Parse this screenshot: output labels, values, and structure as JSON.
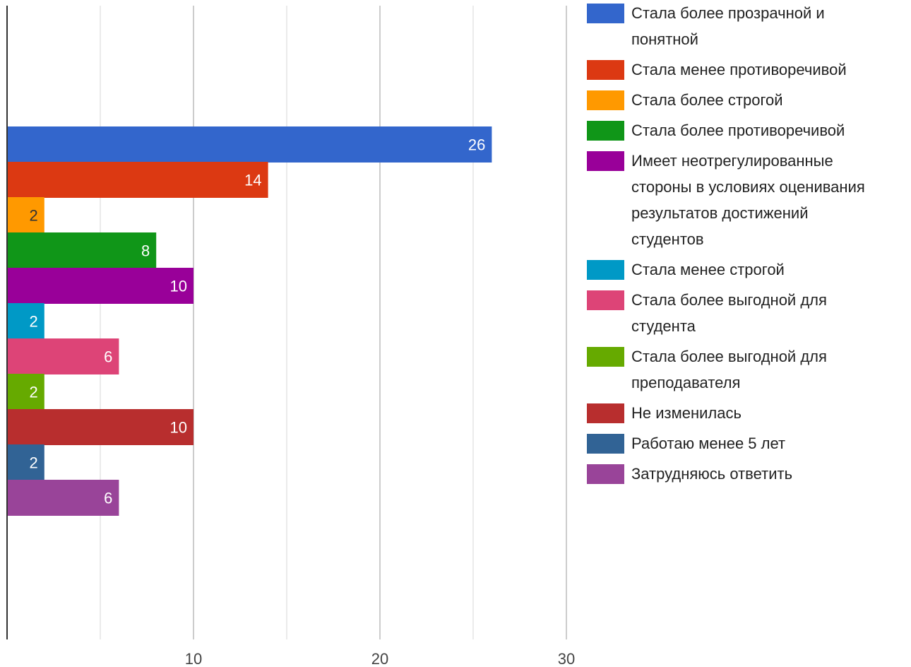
{
  "chart_data": {
    "type": "bar",
    "orientation": "horizontal",
    "xlim": [
      0,
      30
    ],
    "x_ticks": [
      10,
      20,
      30
    ],
    "grid": true,
    "legend_position": "right",
    "series": [
      {
        "name": "Стала более прозрачной и понятной",
        "value": 26,
        "color": "#3366cc",
        "label_color": "#ffffff"
      },
      {
        "name": "Стала менее противоречивой",
        "value": 14,
        "color": "#dc3912",
        "label_color": "#ffffff"
      },
      {
        "name": "Стала более строгой",
        "value": 2,
        "color": "#ff9900",
        "label_color": "#333333"
      },
      {
        "name": "Стала более противоречивой",
        "value": 8,
        "color": "#109618",
        "label_color": "#ffffff"
      },
      {
        "name": "Имеет неотрегулированные стороны в условиях оценивания результатов достижений студентов",
        "value": 10,
        "color": "#990099",
        "label_color": "#ffffff"
      },
      {
        "name": "Стала менее строгой",
        "value": 2,
        "color": "#0099c6",
        "label_color": "#ffffff"
      },
      {
        "name": "Стала более выгодной для студента",
        "value": 6,
        "color": "#dd4477",
        "label_color": "#ffffff"
      },
      {
        "name": "Стала более выгодной для преподавателя",
        "value": 2,
        "color": "#66aa00",
        "label_color": "#ffffff"
      },
      {
        "name": "Не изменилась",
        "value": 10,
        "color": "#b82e2e",
        "label_color": "#ffffff"
      },
      {
        "name": "Работаю менее 5 лет",
        "value": 2,
        "color": "#316395",
        "label_color": "#ffffff"
      },
      {
        "name": "Затрудняюсь ответить",
        "value": 6,
        "color": "#994499",
        "label_color": "#ffffff"
      }
    ]
  },
  "legend": {
    "lines": [
      [
        "Стала более прозрачной и",
        "понятной"
      ],
      [
        "Стала менее противоречивой"
      ],
      [
        "Стала более строгой"
      ],
      [
        "Стала более противоречивой"
      ],
      [
        "Имеет неотрегулированные",
        "стороны в условиях оценивания",
        "результатов достижений",
        "студентов"
      ],
      [
        "Стала менее строгой"
      ],
      [
        "Стала более выгодной для",
        "студента"
      ],
      [
        "Стала более выгодной для",
        "преподавателя"
      ],
      [
        "Не изменилась"
      ],
      [
        "Работаю менее 5 лет"
      ],
      [
        "Затрудняюсь ответить"
      ]
    ]
  }
}
